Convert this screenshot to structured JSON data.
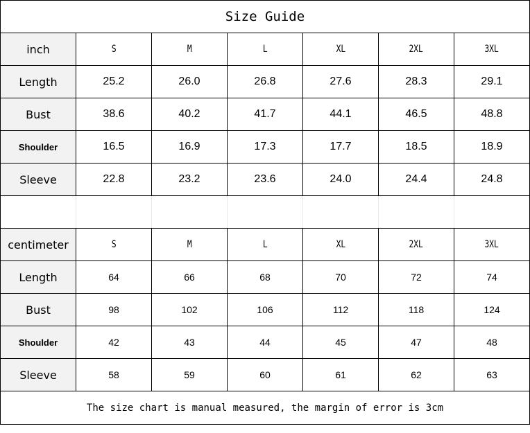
{
  "title": "Size Guide",
  "sizes": [
    "S",
    "M",
    "L",
    "XL",
    "2XL",
    "3XL"
  ],
  "inch": {
    "unit_label": "inch",
    "rows": [
      {
        "label": "Length",
        "bold": false,
        "values": [
          "25.2",
          "26.0",
          "26.8",
          "27.6",
          "28.3",
          "29.1"
        ]
      },
      {
        "label": "Bust",
        "bold": false,
        "values": [
          "38.6",
          "40.2",
          "41.7",
          "44.1",
          "46.5",
          "48.8"
        ]
      },
      {
        "label": "Shoulder",
        "bold": true,
        "values": [
          "16.5",
          "16.9",
          "17.3",
          "17.7",
          "18.5",
          "18.9"
        ]
      },
      {
        "label": "Sleeve",
        "bold": false,
        "values": [
          "22.8",
          "23.2",
          "23.6",
          "24.0",
          "24.4",
          "24.8"
        ]
      }
    ]
  },
  "centimeter": {
    "unit_label": "centimeter",
    "rows": [
      {
        "label": "Length",
        "bold": false,
        "values": [
          "64",
          "66",
          "68",
          "70",
          "72",
          "74"
        ]
      },
      {
        "label": "Bust",
        "bold": false,
        "values": [
          "98",
          "102",
          "106",
          "112",
          "118",
          "124"
        ]
      },
      {
        "label": "Shoulder",
        "bold": true,
        "values": [
          "42",
          "43",
          "44",
          "45",
          "47",
          "48"
        ]
      },
      {
        "label": "Sleeve",
        "bold": false,
        "values": [
          "58",
          "59",
          "60",
          "61",
          "62",
          "63"
        ]
      }
    ]
  },
  "note": "The size chart is manual measured, the margin of error is 3cm",
  "colors": {
    "label_bg": "#f2f2f2",
    "border": "#000000"
  }
}
